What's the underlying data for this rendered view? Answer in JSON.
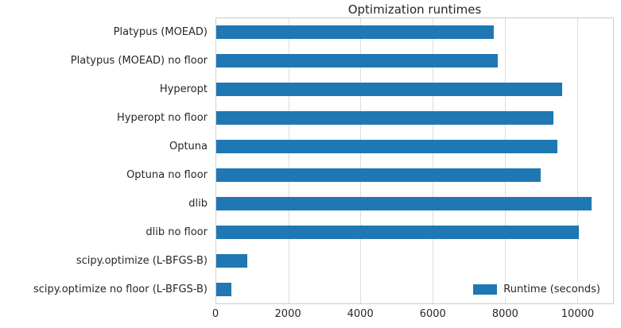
{
  "chart_data": {
    "type": "bar",
    "orientation": "horizontal",
    "title": "Optimization runtimes",
    "categories": [
      "Platypus (MOEAD)",
      "Platypus (MOEAD) no floor",
      "Hyperopt",
      "Hyperopt no floor",
      "Optuna",
      "Optuna no floor",
      "dlib",
      "dlib no floor",
      "scipy.optimize (L-BFGS-B)",
      "scipy.optimize no floor (L-BFGS-B)"
    ],
    "values": [
      7700,
      7800,
      9600,
      9350,
      9450,
      9000,
      10400,
      10050,
      850,
      420
    ],
    "xlabel": "",
    "ylabel": "",
    "xlim": [
      0,
      11000
    ],
    "x_ticks": [
      0,
      2000,
      4000,
      6000,
      8000,
      10000
    ],
    "grid": true,
    "bar_color": "#1f77b4",
    "legend": {
      "label": "Runtime (seconds)",
      "position": "lower right"
    }
  }
}
